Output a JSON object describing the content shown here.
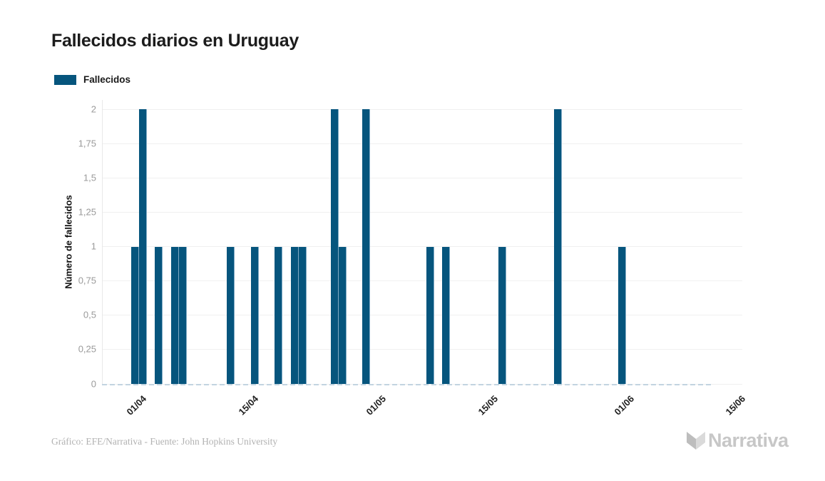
{
  "header": {
    "title": "Fallecidos diarios en Uruguay"
  },
  "legend": {
    "items": [
      {
        "label": "Fallecidos",
        "color": "#06557d"
      }
    ]
  },
  "chart_data": {
    "type": "bar",
    "title": "Fallecidos diarios en Uruguay",
    "xlabel": "",
    "ylabel": "Número de fallecidos",
    "ylim": [
      0,
      2
    ],
    "y_tick_step": 0.25,
    "y_tick_labels": [
      "0",
      "0,25",
      "0,5",
      "0,75",
      "1",
      "1,25",
      "1,5",
      "1,75",
      "2"
    ],
    "x_tick_labels": [
      "01/04",
      "15/04",
      "01/05",
      "15/05",
      "01/06",
      "15/06"
    ],
    "grid": "horizontal",
    "legend_position": "top-left",
    "series": [
      {
        "name": "Fallecidos",
        "color": "#06557d",
        "points": [
          {
            "date": "01/04",
            "value": 1
          },
          {
            "date": "02/04",
            "value": 2
          },
          {
            "date": "04/04",
            "value": 1
          },
          {
            "date": "06/04",
            "value": 1
          },
          {
            "date": "07/04",
            "value": 1
          },
          {
            "date": "13/04",
            "value": 1
          },
          {
            "date": "16/04",
            "value": 1
          },
          {
            "date": "19/04",
            "value": 1
          },
          {
            "date": "21/04",
            "value": 1
          },
          {
            "date": "22/04",
            "value": 1
          },
          {
            "date": "26/04",
            "value": 2
          },
          {
            "date": "27/04",
            "value": 1
          },
          {
            "date": "30/04",
            "value": 2
          },
          {
            "date": "08/05",
            "value": 1
          },
          {
            "date": "10/05",
            "value": 1
          },
          {
            "date": "17/05",
            "value": 1
          },
          {
            "date": "24/05",
            "value": 2
          },
          {
            "date": "01/06",
            "value": 1
          }
        ]
      }
    ]
  },
  "footer": {
    "credit": "Gráfico: EFE/Narrativa - Fuente: John Hopkins University",
    "logo_text": "Narrativa"
  },
  "colors": {
    "bar": "#06557d",
    "bar_edge": "#7fa9c4",
    "gridline": "#f0f0f0",
    "zero_dash": "#c2d4e0",
    "y_label": "#9a9a9a",
    "title": "#1c1c1c",
    "credit": "#b2b2b2",
    "logo": "#c7c7c7"
  }
}
